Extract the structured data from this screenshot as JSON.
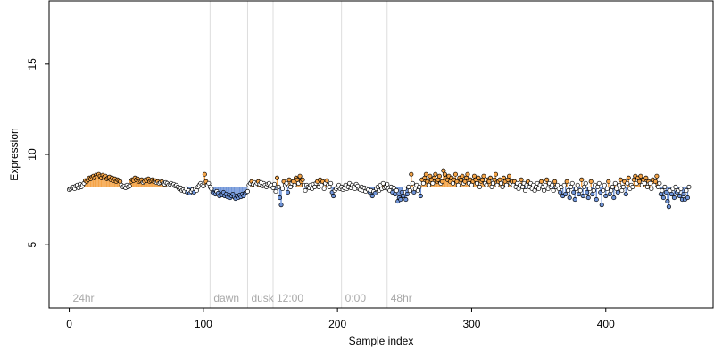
{
  "chart_data": {
    "type": "scatter",
    "xlabel": "Sample index",
    "ylabel": "Expression",
    "xlim": [
      -15,
      480
    ],
    "ylim": [
      1.5,
      18.5
    ],
    "x_ticks": [
      0,
      100,
      200,
      300,
      400
    ],
    "y_ticks": [
      5,
      10,
      15
    ],
    "baseline": 8.2,
    "grid": false,
    "colors": {
      "above": "#f4a448",
      "below": "#6f94d8",
      "neutral": "#ffffff",
      "outline": "#000000",
      "divider": "#dddddd",
      "annotation": "#a8a8a8"
    },
    "dividers": [
      {
        "x": 0,
        "label": "24hr",
        "line": false
      },
      {
        "x": 105,
        "label": "dawn",
        "line": true
      },
      {
        "x": 133,
        "label": "dusk",
        "line": true
      },
      {
        "x": 152,
        "label": "12:00",
        "line": true
      },
      {
        "x": 203,
        "label": "0:00",
        "line": true
      },
      {
        "x": 237,
        "label": "48hr",
        "line": true
      }
    ],
    "segments": [
      {
        "from": 0,
        "to": 10,
        "values": [
          8.05,
          8.1,
          8.15,
          8.2,
          8.1,
          8.25,
          8.3,
          8.15,
          8.35,
          8.2,
          8.3
        ]
      },
      {
        "from": 11,
        "to": 38,
        "values": [
          8.4,
          8.55,
          8.5,
          8.6,
          8.7,
          8.65,
          8.75,
          8.8,
          8.7,
          8.85,
          8.75,
          8.9,
          8.8,
          8.7,
          8.85,
          8.75,
          8.8,
          8.65,
          8.7,
          8.75,
          8.6,
          8.7,
          8.55,
          8.65,
          8.5,
          8.6,
          8.55,
          8.5
        ]
      },
      {
        "from": 39,
        "to": 45,
        "values": [
          8.3,
          8.2,
          8.25,
          8.15,
          8.3,
          8.2,
          8.25
        ]
      },
      {
        "from": 46,
        "to": 80,
        "values": [
          8.5,
          8.6,
          8.55,
          8.7,
          8.6,
          8.65,
          8.5,
          8.55,
          8.6,
          8.45,
          8.5,
          8.6,
          8.55,
          8.65,
          8.5,
          8.55,
          8.6,
          8.5,
          8.55,
          8.45,
          8.5,
          8.4,
          8.45,
          8.5,
          8.4,
          8.35,
          8.45,
          8.4,
          8.3,
          8.35,
          8.4,
          8.3,
          8.35,
          8.25,
          8.3
        ]
      },
      {
        "from": 81,
        "to": 100,
        "values": [
          8.2,
          8.1,
          8.15,
          8.0,
          8.05,
          7.95,
          8.1,
          7.9,
          8.0,
          7.85,
          7.95,
          8.05,
          7.9,
          8.1,
          8.0,
          8.2,
          8.3,
          8.4,
          8.3,
          8.25
        ]
      },
      {
        "from": 101,
        "to": 106,
        "values": [
          8.9,
          8.5,
          8.3,
          8.4,
          8.2,
          8.1
        ]
      },
      {
        "from": 107,
        "to": 133,
        "values": [
          7.9,
          7.85,
          7.8,
          7.95,
          7.85,
          7.7,
          7.8,
          7.75,
          7.9,
          7.7,
          7.8,
          7.65,
          7.75,
          7.6,
          7.7,
          7.8,
          7.65,
          7.55,
          7.7,
          7.6,
          7.75,
          7.65,
          7.8,
          7.7,
          7.85,
          7.9,
          7.95
        ]
      },
      {
        "from": 134,
        "to": 153,
        "values": [
          8.3,
          8.4,
          8.5,
          8.35,
          8.45,
          8.3,
          8.4,
          8.5,
          8.35,
          8.45,
          8.25,
          8.4,
          8.3,
          8.2,
          8.35,
          8.4,
          8.25,
          8.3,
          8.15,
          8.35
        ]
      },
      {
        "from": 154,
        "to": 175,
        "values": [
          7.95,
          8.7,
          8.2,
          7.6,
          7.2,
          8.1,
          8.5,
          8.3,
          8.4,
          7.9,
          8.6,
          8.2,
          8.4,
          8.5,
          8.3,
          8.7,
          8.6,
          8.4,
          8.8,
          8.5,
          8.6,
          8.3
        ]
      },
      {
        "from": 176,
        "to": 205,
        "values": [
          8.0,
          8.3,
          8.2,
          8.15,
          8.3,
          8.1,
          8.35,
          8.2,
          8.4,
          8.5,
          8.2,
          8.6,
          8.3,
          8.5,
          8.1,
          8.4,
          8.55,
          8.3,
          8.2,
          8.4,
          7.9,
          7.7,
          8.0,
          8.1,
          8.2,
          8.3,
          8.1,
          8.2,
          8.05,
          8.15
        ]
      },
      {
        "from": 206,
        "to": 237,
        "values": [
          8.3,
          8.1,
          8.2,
          8.4,
          8.15,
          8.3,
          8.2,
          8.1,
          8.35,
          8.25,
          8.1,
          8.05,
          8.2,
          8.0,
          8.15,
          7.95,
          8.1,
          8.05,
          7.9,
          8.0,
          7.7,
          7.95,
          7.85,
          8.1,
          8.2,
          8.0,
          8.3,
          8.1,
          8.4,
          8.15,
          8.2,
          8.35
        ]
      },
      {
        "from": 238,
        "to": 262,
        "values": [
          8.1,
          8.0,
          8.2,
          7.9,
          8.15,
          7.8,
          8.0,
          7.4,
          7.6,
          7.5,
          7.9,
          7.7,
          8.1,
          7.5,
          7.8,
          8.2,
          8.0,
          8.9,
          8.4,
          7.9,
          8.1,
          8.3,
          8.0,
          8.2,
          7.7
        ]
      },
      {
        "from": 263,
        "to": 330,
        "values": [
          8.6,
          8.4,
          8.7,
          8.9,
          8.5,
          8.3,
          8.8,
          8.6,
          8.4,
          8.7,
          8.9,
          8.5,
          8.6,
          8.8,
          8.4,
          8.5,
          9.1,
          8.9,
          8.7,
          8.6,
          8.8,
          8.5,
          8.7,
          8.4,
          8.6,
          8.9,
          8.5,
          8.3,
          8.7,
          8.6,
          8.8,
          8.4,
          8.5,
          8.7,
          8.9,
          8.4,
          8.6,
          8.3,
          8.5,
          8.8,
          8.6,
          8.4,
          8.7,
          8.2,
          8.5,
          8.6,
          8.8,
          8.4,
          8.3,
          8.6,
          8.5,
          8.7,
          8.2,
          8.4,
          8.6,
          8.9,
          8.3,
          8.5,
          8.6,
          8.4,
          8.2,
          8.7,
          8.5,
          8.3,
          8.6,
          8.8,
          8.4,
          8.5
        ]
      },
      {
        "from": 331,
        "to": 365,
        "values": [
          8.3,
          8.5,
          8.2,
          8.4,
          8.1,
          8.3,
          8.6,
          8.2,
          8.4,
          8.0,
          8.3,
          8.5,
          8.2,
          8.4,
          8.1,
          8.3,
          8.0,
          8.2,
          8.4,
          8.1,
          8.3,
          8.5,
          8.2,
          8.0,
          8.3,
          8.6,
          8.1,
          8.4,
          8.2,
          8.3,
          8.0,
          8.5,
          8.2,
          8.3,
          8.1
        ]
      },
      {
        "from": 366,
        "to": 420,
        "values": [
          7.9,
          8.2,
          7.7,
          8.3,
          7.8,
          8.5,
          8.0,
          7.6,
          8.2,
          8.4,
          7.9,
          7.5,
          8.1,
          8.3,
          7.8,
          8.0,
          8.6,
          7.7,
          8.2,
          8.4,
          7.9,
          7.6,
          8.1,
          8.5,
          7.8,
          8.0,
          8.3,
          7.5,
          8.2,
          8.4,
          7.9,
          7.2,
          8.0,
          8.3,
          7.7,
          8.1,
          8.5,
          7.8,
          8.0,
          8.2,
          7.6,
          8.4,
          8.1,
          7.9,
          8.3,
          8.6,
          8.0,
          8.2,
          8.5,
          7.8,
          8.4,
          8.7,
          8.1,
          8.3,
          8.2
        ]
      },
      {
        "from": 421,
        "to": 440,
        "values": [
          8.6,
          8.8,
          8.4,
          8.7,
          8.5,
          8.8,
          8.3,
          8.6,
          8.4,
          8.7,
          8.2,
          8.5,
          8.4,
          8.1,
          8.6,
          8.3,
          8.5,
          8.8,
          8.2,
          8.4
        ]
      },
      {
        "from": 441,
        "to": 462,
        "values": [
          7.8,
          8.0,
          7.6,
          8.2,
          7.9,
          7.4,
          7.1,
          8.0,
          7.8,
          8.1,
          7.6,
          8.2,
          7.9,
          8.0,
          7.7,
          8.1,
          7.5,
          7.8,
          7.5,
          8.0,
          7.6,
          8.2
        ]
      }
    ]
  }
}
